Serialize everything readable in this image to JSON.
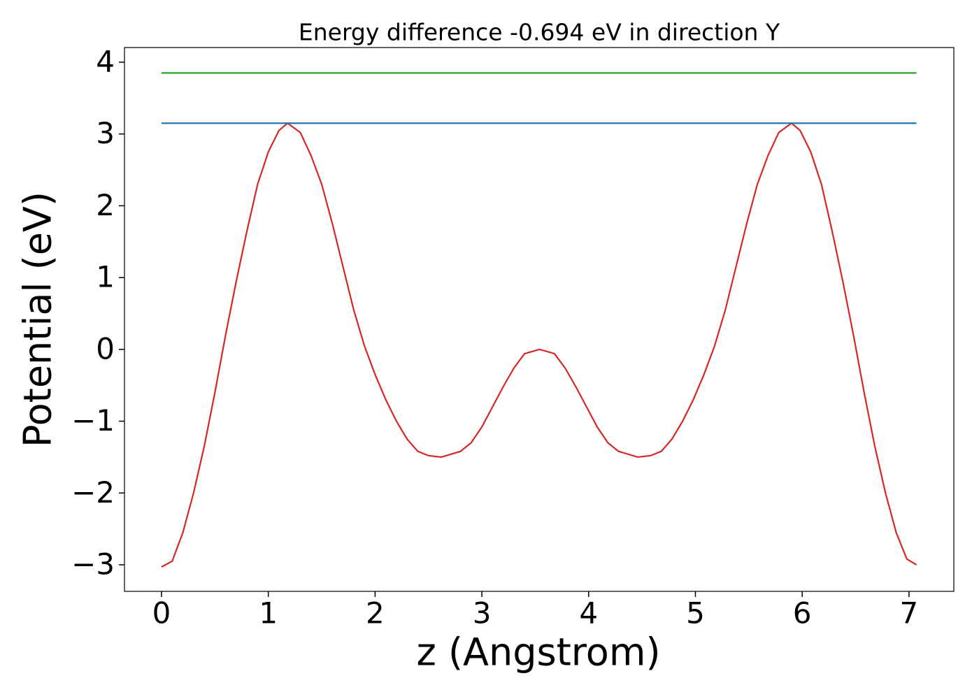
{
  "chart_data": {
    "type": "line",
    "title": "Energy difference -0.694 eV in direction Y",
    "xlabel": "z (Angstrom)",
    "ylabel": "Potential (eV)",
    "xlim": [
      -0.347,
      7.42
    ],
    "ylim": [
      -3.37,
      4.204
    ],
    "xticks": [
      0,
      1,
      2,
      3,
      4,
      5,
      6,
      7
    ],
    "yticks": [
      {
        "value": -3,
        "label": "−3"
      },
      {
        "value": -2,
        "label": "−2"
      },
      {
        "value": -1,
        "label": "−1"
      },
      0,
      1,
      2,
      3,
      4
    ],
    "grid": false,
    "series": [
      {
        "color": "#d62728",
        "x": [
          0,
          0.1,
          0.2,
          0.3,
          0.4,
          0.5,
          0.6,
          0.7,
          0.8,
          0.9,
          1.0,
          1.1,
          1.18,
          1.3,
          1.4,
          1.5,
          1.6,
          1.7,
          1.8,
          1.9,
          2.0,
          2.1,
          2.2,
          2.3,
          2.4,
          2.5,
          2.62,
          2.8,
          2.9,
          3.0,
          3.1,
          3.2,
          3.3,
          3.4,
          3.54,
          3.68,
          3.78,
          3.88,
          3.98,
          4.08,
          4.18,
          4.28,
          4.46,
          4.58,
          4.68,
          4.78,
          4.88,
          4.98,
          5.08,
          5.18,
          5.28,
          5.38,
          5.48,
          5.58,
          5.68,
          5.78,
          5.9,
          5.98,
          6.08,
          6.18,
          6.28,
          6.38,
          6.48,
          6.58,
          6.68,
          6.78,
          6.88,
          6.98,
          7.07
        ],
        "values": [
          -3.03,
          -2.95,
          -2.55,
          -2.0,
          -1.35,
          -0.6,
          0.2,
          0.95,
          1.65,
          2.3,
          2.75,
          3.05,
          3.15,
          3.02,
          2.7,
          2.3,
          1.75,
          1.15,
          0.55,
          0.05,
          -0.35,
          -0.7,
          -1.0,
          -1.25,
          -1.42,
          -1.48,
          -1.5,
          -1.42,
          -1.3,
          -1.08,
          -0.8,
          -0.52,
          -0.26,
          -0.06,
          0.0,
          -0.06,
          -0.26,
          -0.52,
          -0.8,
          -1.08,
          -1.3,
          -1.42,
          -1.5,
          -1.48,
          -1.42,
          -1.25,
          -1.0,
          -0.7,
          -0.35,
          0.05,
          0.55,
          1.15,
          1.75,
          2.3,
          2.7,
          3.02,
          3.15,
          3.05,
          2.75,
          2.3,
          1.65,
          0.95,
          0.2,
          -0.6,
          -1.35,
          -2.0,
          -2.55,
          -2.92,
          -3.0
        ]
      },
      {
        "color": "#1f77b4",
        "x": [
          0,
          7.07
        ],
        "values": [
          3.15,
          3.15
        ]
      },
      {
        "color": "#2ca02c",
        "x": [
          0,
          7.07
        ],
        "values": [
          3.85,
          3.85
        ]
      }
    ]
  }
}
